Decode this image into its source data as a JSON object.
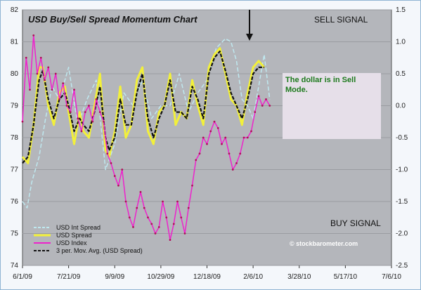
{
  "chart_data": {
    "type": "line",
    "title": "USD Buy/Sell Spread Momentum Chart",
    "x_tick_labels": [
      "6/1/09",
      "7/21/09",
      "9/9/09",
      "10/29/09",
      "12/18/09",
      "2/6/10",
      "3/28/10",
      "5/17/10",
      "7/6/10"
    ],
    "y_left": {
      "ticks": [
        74,
        75,
        76,
        77,
        78,
        79,
        80,
        81,
        82
      ],
      "lim": [
        74,
        82
      ]
    },
    "y_right": {
      "ticks": [
        -2.5,
        -2.0,
        -1.5,
        -1.0,
        -0.5,
        0.0,
        0.5,
        1.0,
        1.5
      ],
      "lim": [
        -2.5,
        1.5
      ]
    },
    "x_range_days": [
      0,
      400
    ],
    "series": [
      {
        "name": "USD Int Spread",
        "axis": "right",
        "color": "#bfe8ef",
        "style": "dashed",
        "x": [
          0,
          5,
          10,
          18,
          25,
          32,
          40,
          50,
          60,
          70,
          80,
          90,
          100,
          110,
          120,
          130,
          140,
          150,
          160,
          170,
          180,
          190,
          200,
          210,
          220,
          226,
          232,
          238,
          244,
          250,
          256,
          262,
          268
        ],
        "y": [
          -1.5,
          -1.6,
          -1.2,
          -0.8,
          -0.2,
          0.3,
          0.1,
          0.6,
          -0.3,
          0.1,
          0.4,
          -1.0,
          -0.6,
          0.2,
          0.0,
          0.4,
          -0.2,
          0.0,
          0.0,
          0.5,
          -0.1,
          0.2,
          0.4,
          0.9,
          1.05,
          1.0,
          0.7,
          0.1,
          0.0,
          -0.2,
          0.3,
          0.8,
          0.1
        ]
      },
      {
        "name": "USD Spread",
        "axis": "right",
        "color": "#f2f03a",
        "style": "solid",
        "x": [
          0,
          6,
          12,
          18,
          22,
          28,
          34,
          40,
          46,
          50,
          56,
          62,
          66,
          72,
          78,
          84,
          90,
          94,
          100,
          106,
          112,
          118,
          124,
          130,
          136,
          142,
          148,
          154,
          160,
          166,
          172,
          178,
          184,
          190,
          196,
          202,
          208,
          214,
          220,
          226,
          232,
          238,
          244,
          250,
          256,
          262
        ],
        "y": [
          -0.8,
          -0.9,
          -0.3,
          0.6,
          0.6,
          0.0,
          -0.3,
          0.2,
          0.3,
          -0.1,
          -0.6,
          -0.1,
          -0.4,
          -0.5,
          0.0,
          0.5,
          -0.7,
          -0.8,
          -0.4,
          0.3,
          -0.5,
          -0.3,
          0.4,
          0.6,
          -0.4,
          -0.6,
          -0.1,
          0.0,
          0.5,
          -0.3,
          -0.1,
          -0.2,
          0.4,
          0.0,
          -0.3,
          0.6,
          0.8,
          0.9,
          0.5,
          0.1,
          0.0,
          -0.3,
          0.2,
          0.6,
          0.7,
          0.6
        ]
      },
      {
        "name": "USD Index",
        "axis": "left",
        "color": "#ee22cc",
        "style": "solid",
        "x": [
          0,
          4,
          8,
          12,
          16,
          20,
          24,
          28,
          32,
          36,
          40,
          44,
          48,
          52,
          56,
          60,
          64,
          68,
          72,
          76,
          80,
          84,
          88,
          92,
          96,
          100,
          104,
          108,
          112,
          116,
          120,
          124,
          128,
          132,
          136,
          140,
          144,
          148,
          152,
          156,
          160,
          164,
          168,
          172,
          176,
          180,
          184,
          188,
          192,
          196,
          200,
          204,
          208,
          212,
          216,
          220,
          224,
          228,
          232,
          236,
          240,
          244,
          248,
          252,
          256,
          260,
          264,
          268
        ],
        "y": [
          78.5,
          80.5,
          79.5,
          81.2,
          80.0,
          80.5,
          79.8,
          80.2,
          79.5,
          80.0,
          79.2,
          79.7,
          79.0,
          78.8,
          79.5,
          78.6,
          78.2,
          78.8,
          79.0,
          78.5,
          79.2,
          78.8,
          78.5,
          77.5,
          77.2,
          76.8,
          76.5,
          77.0,
          76.0,
          75.5,
          75.2,
          75.8,
          76.3,
          75.8,
          75.5,
          75.3,
          75.0,
          75.2,
          76.0,
          75.5,
          74.8,
          75.3,
          76.0,
          75.5,
          75.0,
          75.8,
          76.5,
          77.3,
          77.5,
          78.0,
          77.8,
          78.2,
          78.5,
          78.3,
          77.8,
          78.0,
          77.5,
          77.0,
          77.2,
          77.5,
          78.0,
          78.0,
          78.2,
          78.8,
          79.3,
          79.0,
          79.2,
          79.0
        ]
      },
      {
        "name": "3 per. Mov. Avg. (USD Spread)",
        "axis": "right",
        "color": "#111111",
        "style": "dashed",
        "x": [
          0,
          6,
          12,
          18,
          22,
          28,
          34,
          40,
          46,
          50,
          56,
          62,
          66,
          72,
          78,
          84,
          90,
          94,
          100,
          106,
          112,
          118,
          124,
          130,
          136,
          142,
          148,
          154,
          160,
          166,
          172,
          178,
          184,
          190,
          196,
          202,
          208,
          214,
          220,
          226,
          232,
          238,
          244,
          250,
          256,
          262
        ],
        "y": [
          -0.9,
          -0.8,
          -0.3,
          0.4,
          0.55,
          0.1,
          -0.2,
          0.1,
          0.2,
          0.0,
          -0.4,
          -0.2,
          -0.3,
          -0.4,
          -0.1,
          0.3,
          -0.5,
          -0.7,
          -0.5,
          0.1,
          -0.3,
          -0.3,
          0.2,
          0.5,
          -0.2,
          -0.5,
          -0.2,
          0.0,
          0.4,
          -0.1,
          -0.1,
          -0.2,
          0.3,
          0.1,
          -0.2,
          0.5,
          0.75,
          0.85,
          0.55,
          0.2,
          0.0,
          -0.2,
          0.1,
          0.5,
          0.6,
          0.6
        ]
      }
    ],
    "legend_entries": [
      "USD Int Spread",
      "USD Spread",
      "USD Index",
      "3 per. Mov. Avg. (USD Spread)"
    ],
    "annotations": {
      "sell": "SELL SIGNAL",
      "buy": "BUY SIGNAL",
      "note": "The dollar is in Sell Mode.",
      "watermark": "© stockbarometer.com"
    },
    "colors": {
      "plot_bg": "#b4b6bb",
      "grid": "#9a9ca1",
      "note_box": "#e6dfe9",
      "frame": "#8fb4d4"
    }
  }
}
